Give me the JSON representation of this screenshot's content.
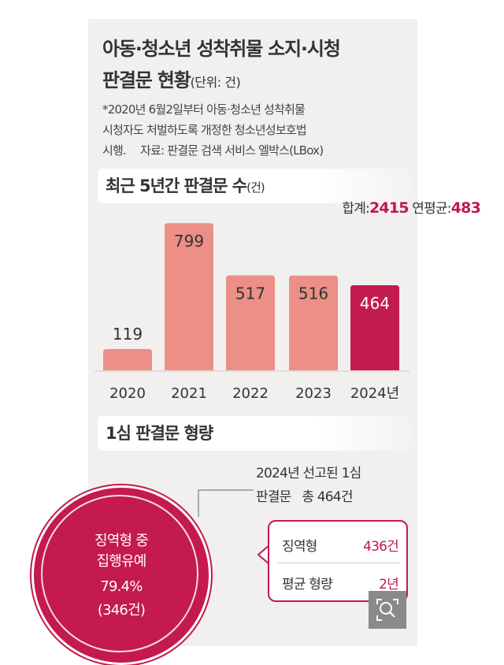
{
  "header": {
    "title_line1": "아동·청소년 성착취물 소지·시청",
    "title_line2": "판결문 현황",
    "unit": "(단위: 건)"
  },
  "note": {
    "line1": "*2020년 6월2일부터 아동·청소년 성착취물",
    "line2": "시청자도 처벌하도록 개정한 청소년성보호법",
    "line3": "시행.",
    "source": "자료: 판결문 검색 서비스 엘박스(LBox)"
  },
  "section1": {
    "title": "최근 5년간 판결문 수",
    "unit": "(건)",
    "total_label": "합계:",
    "total_value": "2415",
    "avg_label": "연평균:",
    "avg_value": "483"
  },
  "chart_data": {
    "type": "bar",
    "title": "최근 5년간 판결문 수",
    "categories": [
      "2020",
      "2021",
      "2022",
      "2023",
      "2024년"
    ],
    "values": [
      119,
      799,
      517,
      516,
      464
    ],
    "data_labels": [
      "119",
      "799",
      "517",
      "516",
      "464"
    ],
    "xlabel": "",
    "ylabel": "",
    "ylim": [
      0,
      800
    ],
    "grid": false,
    "colors": {
      "default": "#ec8f86",
      "highlight": "#c21b4f",
      "highlight_index": 4,
      "label_dark": "#333333",
      "label_light": "#ffffff"
    }
  },
  "section2": {
    "title": "1심 판결문 형량",
    "info_line1": "2024년 선고된 1심",
    "info_line2": "판결문   총 464건",
    "circle_line1": "징역형 중",
    "circle_line2": "집행유예",
    "circle_line3": "79.4%",
    "circle_line4": "(346건)",
    "row1_label": "징역형",
    "row1_value": "436건",
    "row2_label": "평균 형량",
    "row2_value": "2년"
  },
  "colors": {
    "accent": "#c41a4d",
    "panel_bg": "#f1f0ee",
    "bar": "#ec8f86"
  },
  "icons": {
    "zoom": "zoom-magnifier-icon"
  }
}
